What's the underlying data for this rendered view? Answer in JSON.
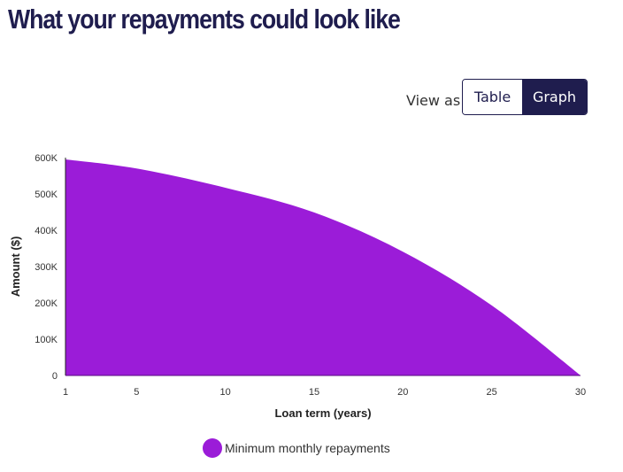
{
  "header": {
    "title": "What your repayments could look like"
  },
  "view_toggle": {
    "label": "View as",
    "options": [
      {
        "label": "Table",
        "selected": false
      },
      {
        "label": "Graph",
        "selected": true
      }
    ]
  },
  "colors": {
    "series": "#9b1cd8",
    "brand_navy": "#1f1d4e"
  },
  "chart_data": {
    "type": "area",
    "title": "",
    "xlabel": "Loan term (years)",
    "ylabel": "Amount ($)",
    "x_ticks": [
      "1",
      "5",
      "10",
      "15",
      "20",
      "25",
      "30"
    ],
    "y_ticks": [
      "0",
      "100K",
      "200K",
      "300K",
      "400K",
      "500K",
      "600K"
    ],
    "xlim": [
      1,
      30
    ],
    "ylim": [
      0,
      600000
    ],
    "grid": false,
    "legend_position": "bottom",
    "x": [
      1,
      5,
      10,
      15,
      20,
      25,
      30
    ],
    "series": [
      {
        "name": "Minimum monthly repayments",
        "color": "#9b1cd8",
        "values": [
          595000,
          570000,
          517000,
          449000,
          341000,
          193000,
          0
        ]
      }
    ]
  },
  "legend": {
    "items": [
      {
        "label": "Minimum monthly repayments"
      }
    ]
  }
}
